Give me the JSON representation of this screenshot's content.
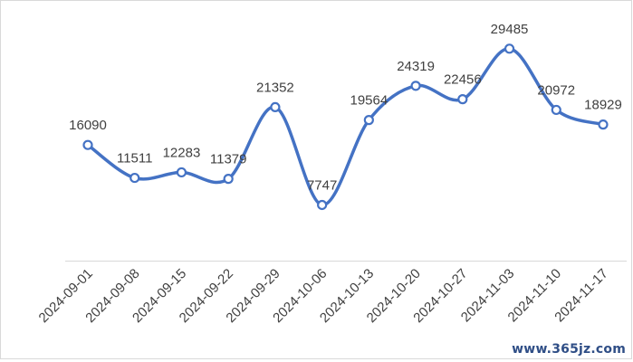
{
  "chart_data": {
    "type": "line",
    "categories": [
      "2024-09-01",
      "2024-09-08",
      "2024-09-15",
      "2024-09-22",
      "2024-09-29",
      "2024-10-06",
      "2024-10-13",
      "2024-10-20",
      "2024-10-27",
      "2024-11-03",
      "2024-11-10",
      "2024-11-17"
    ],
    "values": [
      16090,
      11511,
      12283,
      11379,
      21352,
      7747,
      19564,
      24319,
      22456,
      29485,
      20972,
      18929
    ],
    "data_labels": [
      "16090",
      "11511",
      "12283",
      "11379",
      "21352",
      "7747",
      "19564",
      "24319",
      "22456",
      "29485",
      "20972",
      "18929"
    ],
    "title": "",
    "xlabel": "",
    "ylabel": "",
    "ylim": [
      0,
      35000
    ],
    "grid": false,
    "smooth": true,
    "colors": {
      "line": "#4472C4",
      "marker_fill": "#ffffff",
      "text": "#404040",
      "frame": "#d9d9d9"
    }
  },
  "watermark": "www.365jz.com"
}
